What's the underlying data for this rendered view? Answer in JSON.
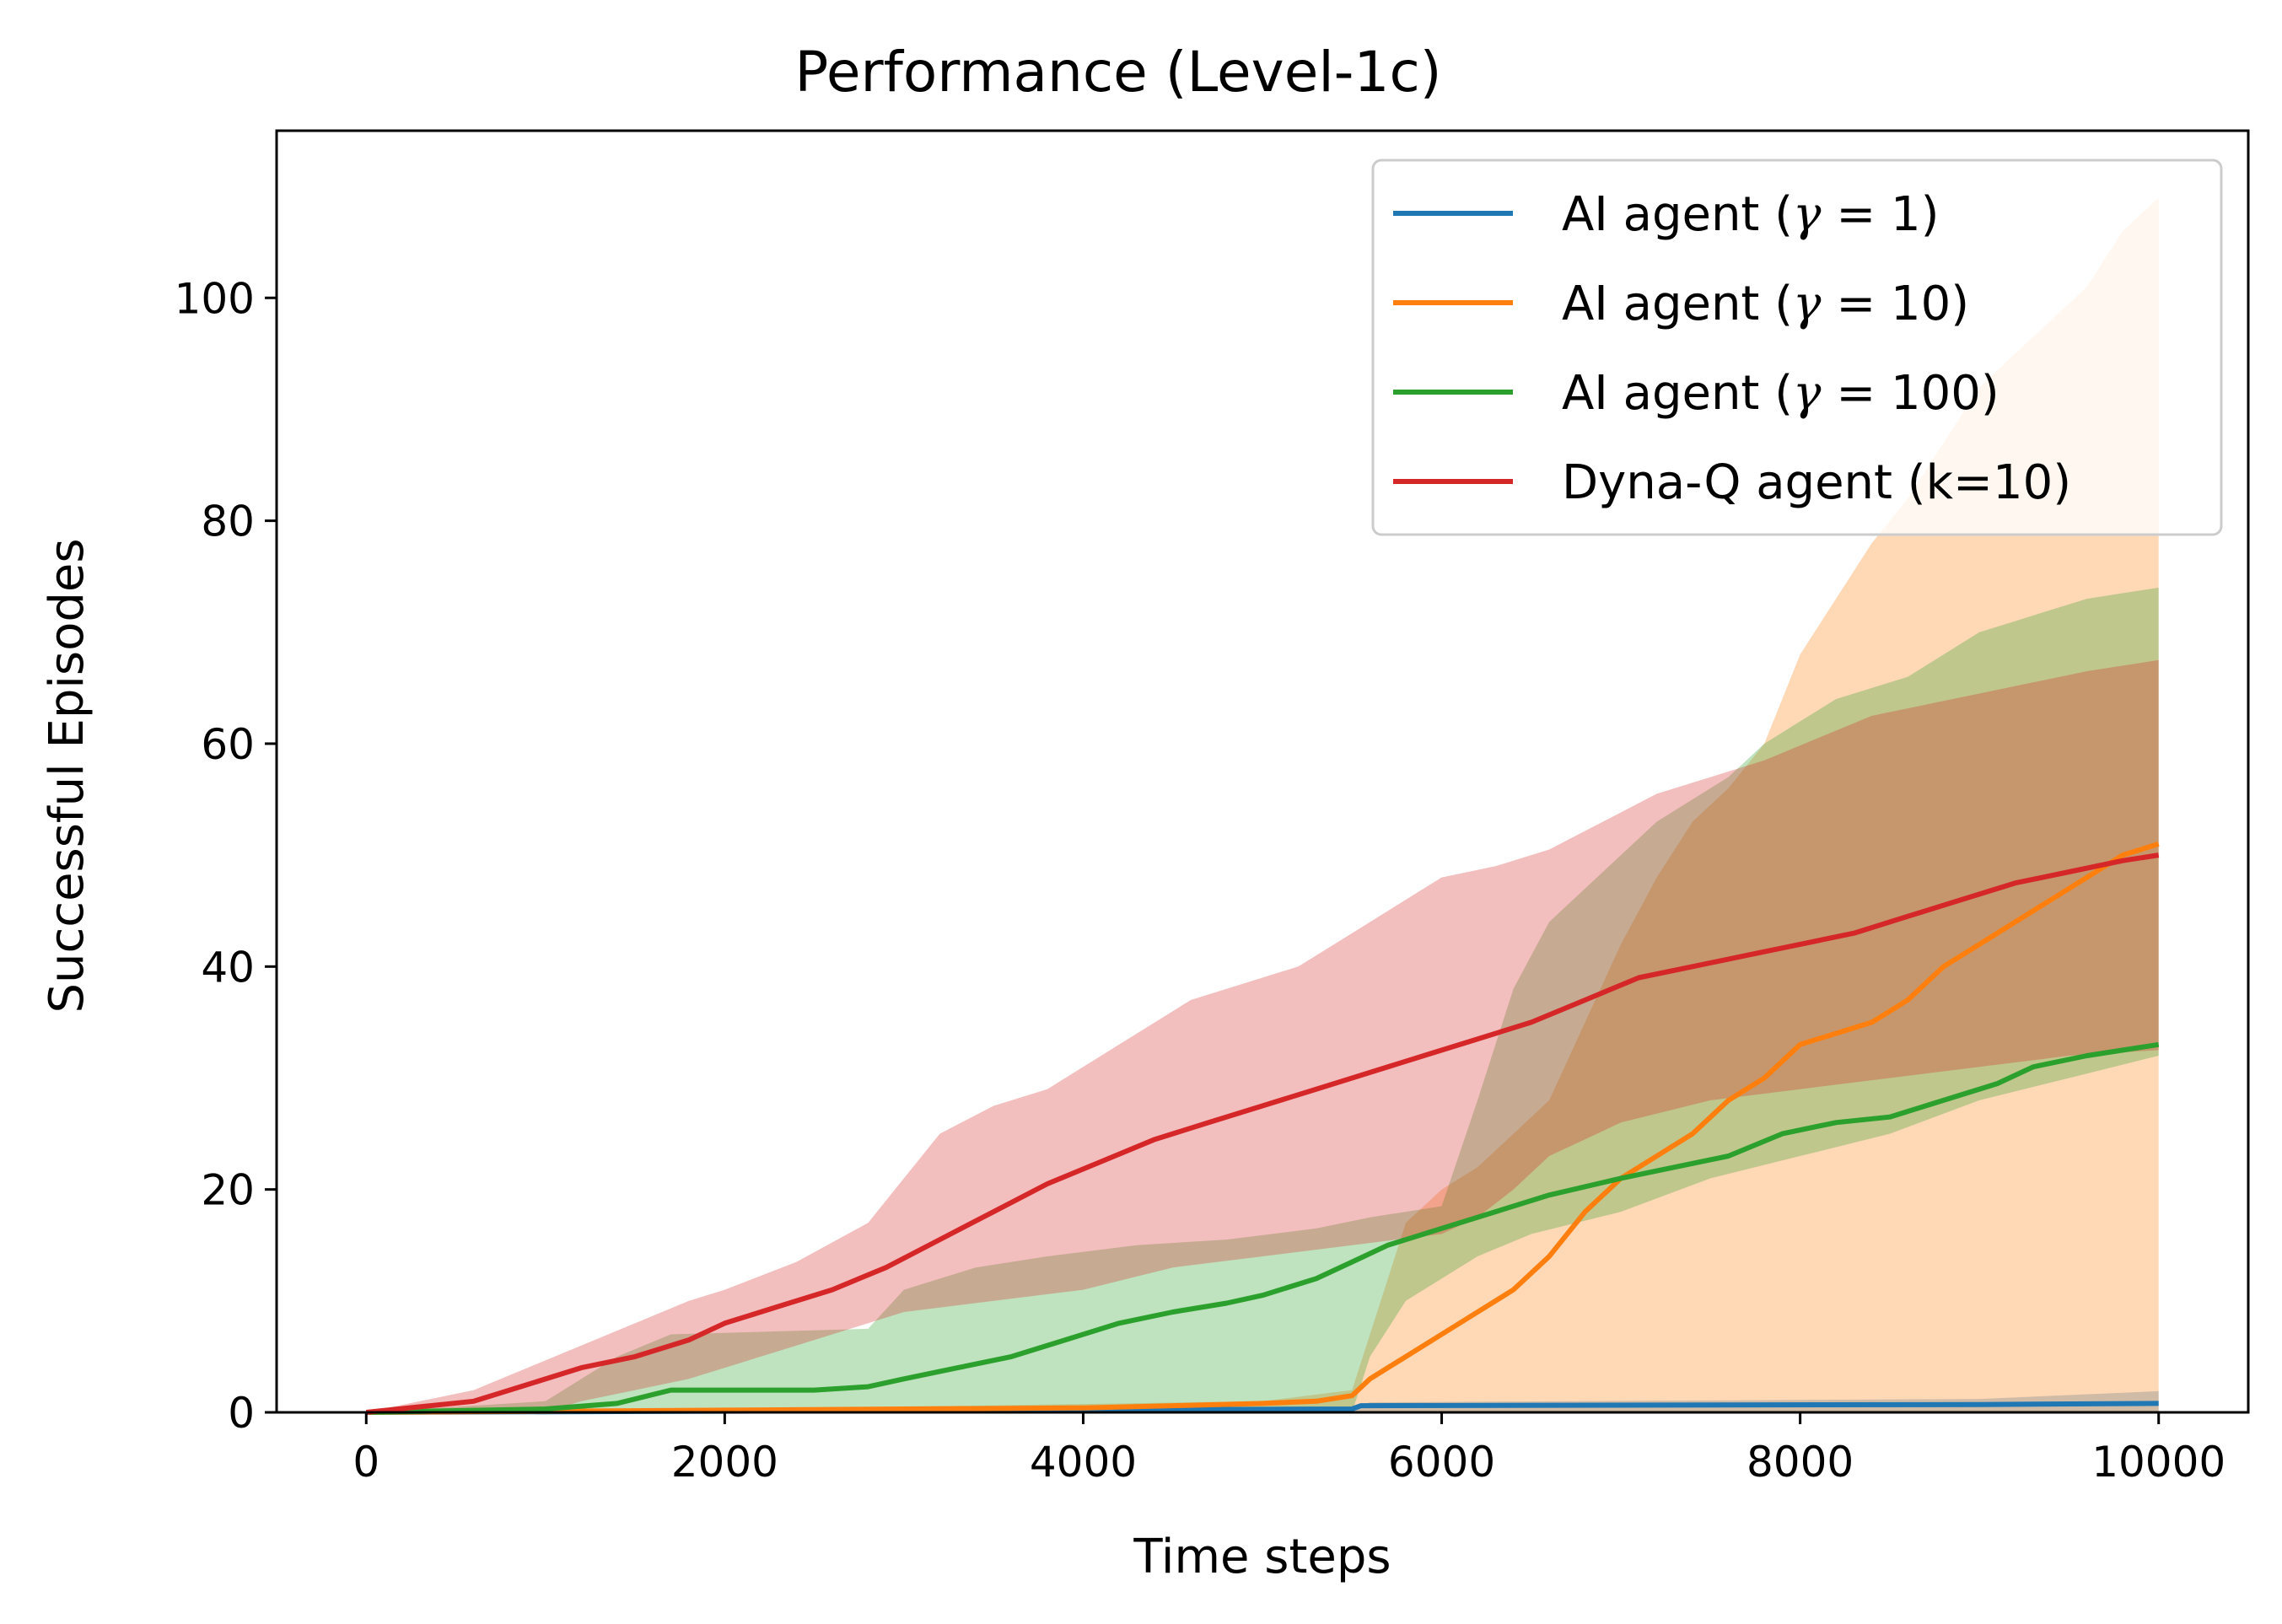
{
  "chart_data": {
    "type": "line",
    "title": "Performance (Level-1c)",
    "xlabel": "Time steps",
    "ylabel": "Successful Episodes",
    "xlim": [
      -500,
      10500
    ],
    "ylim": [
      0,
      115
    ],
    "xticks": [
      0,
      2000,
      4000,
      6000,
      8000,
      10000
    ],
    "yticks": [
      0,
      20,
      40,
      60,
      80,
      100
    ],
    "grid": false,
    "legend_position": "top-right",
    "series": [
      {
        "name": "AI agent (γ = 1)",
        "legend_prefix": "AI agent (",
        "legend_symbol": "γ",
        "legend_suffix": " = 1)",
        "color": "#1f77b4",
        "points": [
          [
            0,
            0
          ],
          [
            5500,
            0.3
          ],
          [
            5550,
            0.6
          ],
          [
            9000,
            0.7
          ],
          [
            10000,
            0.8
          ]
        ],
        "band_upper": [
          [
            0,
            0
          ],
          [
            5500,
            0.4
          ],
          [
            5600,
            0.9
          ],
          [
            9000,
            1.2
          ],
          [
            10000,
            1.9
          ]
        ],
        "band_lower": [
          [
            0,
            0
          ],
          [
            10000,
            0
          ]
        ]
      },
      {
        "name": "AI agent (γ = 10)",
        "legend_prefix": "AI agent (",
        "legend_symbol": "γ",
        "legend_suffix": " = 10)",
        "color": "#ff7f0e",
        "points": [
          [
            0,
            0
          ],
          [
            1000,
            0.1
          ],
          [
            2000,
            0.2
          ],
          [
            3000,
            0.3
          ],
          [
            4000,
            0.4
          ],
          [
            4500,
            0.6
          ],
          [
            5000,
            0.8
          ],
          [
            5300,
            1
          ],
          [
            5500,
            1.5
          ],
          [
            5600,
            3
          ],
          [
            5800,
            5
          ],
          [
            6000,
            7
          ],
          [
            6200,
            9
          ],
          [
            6400,
            11
          ],
          [
            6600,
            14
          ],
          [
            6800,
            18
          ],
          [
            7000,
            21
          ],
          [
            7200,
            23
          ],
          [
            7400,
            25
          ],
          [
            7600,
            28
          ],
          [
            7800,
            30
          ],
          [
            8000,
            33
          ],
          [
            8200,
            34
          ],
          [
            8400,
            35
          ],
          [
            8600,
            37
          ],
          [
            8800,
            40
          ],
          [
            9000,
            42
          ],
          [
            9200,
            44
          ],
          [
            9400,
            46
          ],
          [
            9600,
            48
          ],
          [
            9800,
            50
          ],
          [
            10000,
            51
          ]
        ],
        "band_upper": [
          [
            0,
            0
          ],
          [
            3000,
            0.5
          ],
          [
            5000,
            1
          ],
          [
            5500,
            2
          ],
          [
            5700,
            12
          ],
          [
            5800,
            17
          ],
          [
            6000,
            20
          ],
          [
            6200,
            22
          ],
          [
            6400,
            25
          ],
          [
            6600,
            28
          ],
          [
            6800,
            35
          ],
          [
            7000,
            42
          ],
          [
            7200,
            48
          ],
          [
            7400,
            53
          ],
          [
            7600,
            56
          ],
          [
            7800,
            60
          ],
          [
            8000,
            68
          ],
          [
            8200,
            73
          ],
          [
            8400,
            78
          ],
          [
            8600,
            82
          ],
          [
            8800,
            87
          ],
          [
            9000,
            92
          ],
          [
            9200,
            95
          ],
          [
            9400,
            98
          ],
          [
            9600,
            101
          ],
          [
            9800,
            106
          ],
          [
            10000,
            109
          ]
        ],
        "band_lower": [
          [
            0,
            0
          ],
          [
            10000,
            0
          ]
        ]
      },
      {
        "name": "AI agent (γ = 100)",
        "legend_prefix": "AI agent (",
        "legend_symbol": "γ",
        "legend_suffix": " = 100)",
        "color": "#2ca02c",
        "points": [
          [
            0,
            0
          ],
          [
            1000,
            0.3
          ],
          [
            1400,
            0.8
          ],
          [
            1700,
            2
          ],
          [
            2000,
            2
          ],
          [
            2500,
            2
          ],
          [
            2800,
            2.3
          ],
          [
            3000,
            3
          ],
          [
            3300,
            4
          ],
          [
            3600,
            5
          ],
          [
            3900,
            6.5
          ],
          [
            4200,
            8
          ],
          [
            4500,
            9
          ],
          [
            4800,
            9.8
          ],
          [
            5000,
            10.5
          ],
          [
            5300,
            12
          ],
          [
            5500,
            13.5
          ],
          [
            5700,
            15
          ],
          [
            6000,
            16.5
          ],
          [
            6300,
            18
          ],
          [
            6600,
            19.5
          ],
          [
            7000,
            21
          ],
          [
            7300,
            22
          ],
          [
            7600,
            23
          ],
          [
            7900,
            25
          ],
          [
            8200,
            26
          ],
          [
            8500,
            26.5
          ],
          [
            8800,
            28
          ],
          [
            9100,
            29.5
          ],
          [
            9300,
            31
          ],
          [
            9600,
            32
          ],
          [
            10000,
            33
          ]
        ],
        "band_upper": [
          [
            0,
            0
          ],
          [
            1000,
            1
          ],
          [
            1400,
            5
          ],
          [
            1700,
            7
          ],
          [
            2800,
            7.5
          ],
          [
            3000,
            11
          ],
          [
            3400,
            13
          ],
          [
            3800,
            14
          ],
          [
            4300,
            15
          ],
          [
            4800,
            15.5
          ],
          [
            5300,
            16.5
          ],
          [
            5600,
            17.5
          ],
          [
            5800,
            18
          ],
          [
            6000,
            18.5
          ],
          [
            6200,
            28
          ],
          [
            6400,
            38
          ],
          [
            6600,
            44
          ],
          [
            6800,
            47
          ],
          [
            7000,
            50
          ],
          [
            7200,
            53
          ],
          [
            7400,
            55
          ],
          [
            7600,
            57
          ],
          [
            7800,
            60
          ],
          [
            8000,
            62
          ],
          [
            8200,
            64
          ],
          [
            8400,
            65
          ],
          [
            8600,
            66
          ],
          [
            8800,
            68
          ],
          [
            9000,
            70
          ],
          [
            9200,
            71
          ],
          [
            9400,
            72
          ],
          [
            9600,
            73
          ],
          [
            10000,
            74
          ]
        ],
        "band_lower": [
          [
            0,
            0
          ],
          [
            5500,
            0
          ],
          [
            5600,
            5
          ],
          [
            5800,
            10
          ],
          [
            6000,
            12
          ],
          [
            6200,
            14
          ],
          [
            6500,
            16
          ],
          [
            7000,
            18
          ],
          [
            7500,
            21
          ],
          [
            8000,
            23
          ],
          [
            8500,
            25
          ],
          [
            9000,
            28
          ],
          [
            9500,
            30
          ],
          [
            10000,
            32
          ]
        ]
      },
      {
        "name": "Dyna-Q agent (k=10)",
        "legend_prefix": "Dyna-Q agent (k=10)",
        "legend_symbol": "",
        "legend_suffix": "",
        "color": "#d62728",
        "points": [
          [
            0,
            0
          ],
          [
            300,
            0.5
          ],
          [
            600,
            1
          ],
          [
            900,
            2.5
          ],
          [
            1200,
            4
          ],
          [
            1500,
            5
          ],
          [
            1800,
            6.5
          ],
          [
            2000,
            8
          ],
          [
            2300,
            9.5
          ],
          [
            2600,
            11
          ],
          [
            2900,
            13
          ],
          [
            3200,
            15.5
          ],
          [
            3500,
            18
          ],
          [
            3800,
            20.5
          ],
          [
            4100,
            22.5
          ],
          [
            4400,
            24.5
          ],
          [
            4700,
            26
          ],
          [
            5000,
            27.5
          ],
          [
            5300,
            29
          ],
          [
            5600,
            30.5
          ],
          [
            5900,
            32
          ],
          [
            6200,
            33.5
          ],
          [
            6500,
            35
          ],
          [
            6800,
            37
          ],
          [
            7100,
            39
          ],
          [
            7400,
            40
          ],
          [
            7700,
            41
          ],
          [
            8000,
            42
          ],
          [
            8300,
            43
          ],
          [
            8600,
            44.5
          ],
          [
            8900,
            46
          ],
          [
            9200,
            47.5
          ],
          [
            9500,
            48.5
          ],
          [
            9800,
            49.5
          ],
          [
            10000,
            50
          ]
        ],
        "band_upper": [
          [
            0,
            0
          ],
          [
            300,
            1
          ],
          [
            600,
            2
          ],
          [
            900,
            4
          ],
          [
            1200,
            6
          ],
          [
            1500,
            8
          ],
          [
            1800,
            10
          ],
          [
            2000,
            11
          ],
          [
            2400,
            13.5
          ],
          [
            2800,
            17
          ],
          [
            3000,
            21
          ],
          [
            3200,
            25
          ],
          [
            3500,
            27.5
          ],
          [
            3800,
            29
          ],
          [
            4000,
            31
          ],
          [
            4300,
            34
          ],
          [
            4600,
            37
          ],
          [
            4900,
            38.5
          ],
          [
            5200,
            40
          ],
          [
            5500,
            43
          ],
          [
            5800,
            46
          ],
          [
            6000,
            48
          ],
          [
            6300,
            49
          ],
          [
            6600,
            50.5
          ],
          [
            6900,
            53
          ],
          [
            7200,
            55.5
          ],
          [
            7500,
            57
          ],
          [
            7800,
            58.5
          ],
          [
            8100,
            60.5
          ],
          [
            8400,
            62.5
          ],
          [
            8700,
            63.5
          ],
          [
            9000,
            64.5
          ],
          [
            9300,
            65.5
          ],
          [
            9600,
            66.5
          ],
          [
            10000,
            67.5
          ]
        ],
        "band_lower": [
          [
            0,
            0
          ],
          [
            1000,
            0
          ],
          [
            1200,
            1
          ],
          [
            1500,
            2
          ],
          [
            1800,
            3
          ],
          [
            2000,
            4
          ],
          [
            2400,
            6
          ],
          [
            2800,
            8
          ],
          [
            3000,
            9
          ],
          [
            3500,
            10
          ],
          [
            4000,
            11
          ],
          [
            4500,
            13
          ],
          [
            5000,
            14
          ],
          [
            5500,
            15
          ],
          [
            6000,
            16
          ],
          [
            6200,
            17.5
          ],
          [
            6400,
            20
          ],
          [
            6600,
            23
          ],
          [
            7000,
            26
          ],
          [
            7500,
            28
          ],
          [
            8000,
            29
          ],
          [
            8500,
            30
          ],
          [
            9000,
            31
          ],
          [
            9500,
            32
          ],
          [
            10000,
            32.5
          ]
        ]
      }
    ]
  }
}
